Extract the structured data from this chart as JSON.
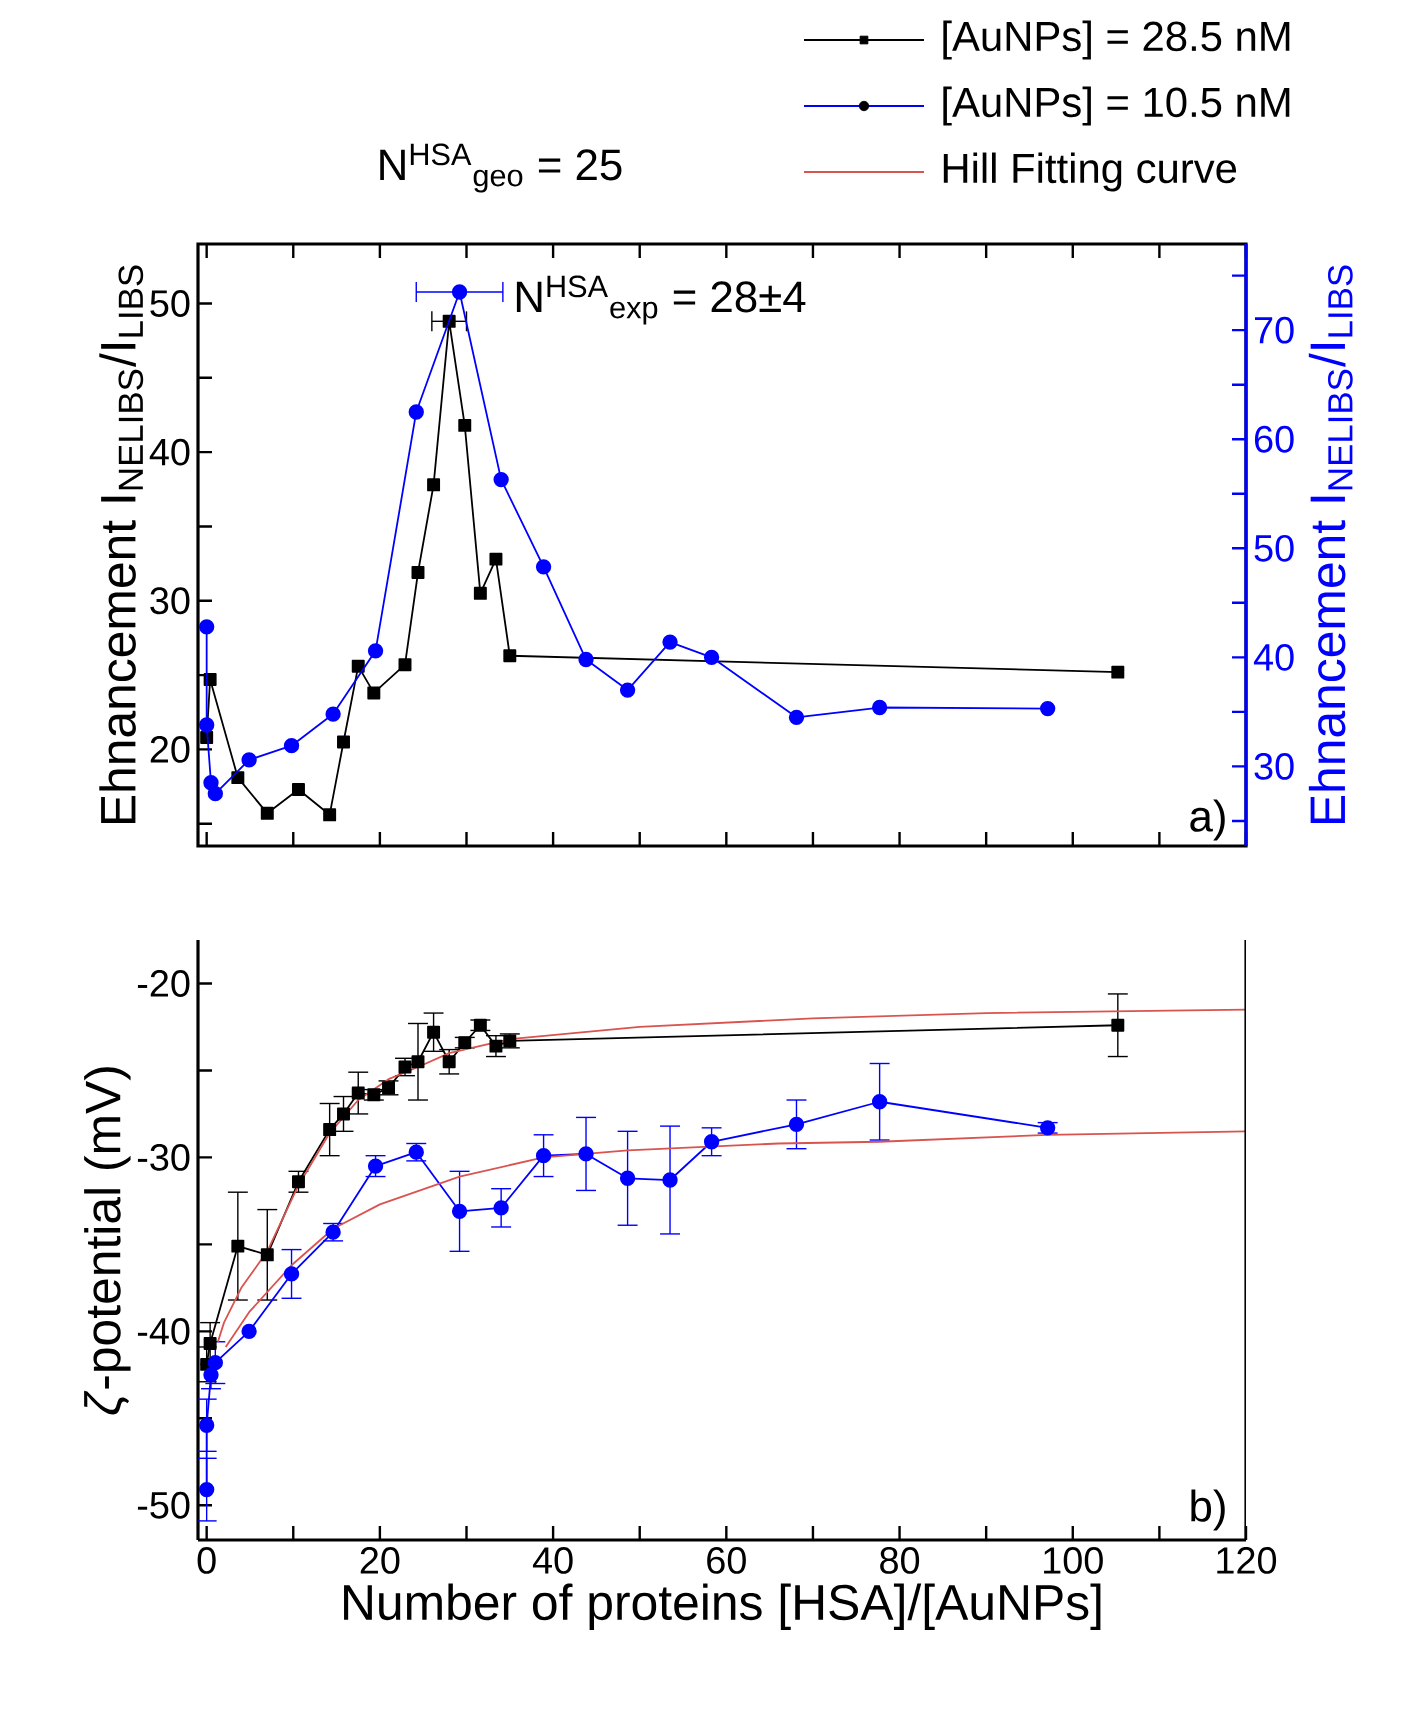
{
  "chart_data": [
    {
      "type": "line",
      "ylabel": "Ehnancement I$_{NELIBS}$/I$_{LIBS}$",
      "y2label": "Ehnancement I$_{NELIBS}$/I$_{LIBS}$",
      "legend": "top right",
      "tick_labels": "y",
      "annotations": [
        "N$^{HSA}$$_{geo}$ = 25",
        "N$^{HSA}$$_{exp}$ = 28±4",
        "a)"
      ],
      "xlim": [
        -1,
        120
      ],
      "xticks": [
        {
          "value": 0,
          "label": null
        },
        {
          "value": 10,
          "label": null
        },
        {
          "value": 20,
          "label": null
        },
        {
          "value": 30,
          "label": null
        },
        {
          "value": 40,
          "label": null
        },
        {
          "value": 50,
          "label": null
        },
        {
          "value": 60,
          "label": null
        },
        {
          "value": 70,
          "label": null
        },
        {
          "value": 80,
          "label": null
        },
        {
          "value": 90,
          "label": null
        },
        {
          "value": 100,
          "label": null
        },
        {
          "value": 110,
          "label": null
        },
        {
          "value": 120,
          "label": null
        }
      ],
      "ylim": [
        13.5,
        54
      ],
      "yticks": [
        {
          "value": 15,
          "label": null
        },
        20,
        {
          "value": 25,
          "label": null
        },
        30,
        {
          "value": 35,
          "label": null
        },
        40,
        {
          "value": 45,
          "label": null
        },
        50
      ],
      "y2lim": [
        22.7,
        77.9
      ],
      "y2ticks": [
        {
          "value": 25,
          "label": null
        },
        30,
        {
          "value": 35,
          "label": null
        },
        40,
        {
          "value": 45,
          "label": null
        },
        50,
        {
          "value": 55,
          "label": null
        },
        60,
        {
          "value": 65,
          "label": null
        },
        70,
        {
          "value": 75,
          "label": null
        }
      ],
      "series": [
        {
          "name": "[AuNPs] = 28.5 nM",
          "color": "#000000",
          "marker": "square",
          "axis": "y",
          "x": [
            0,
            0.4,
            3.6,
            7.0,
            10.6,
            14.2,
            15.8,
            17.5,
            19.3,
            22.9,
            24.4,
            26.2,
            28.0,
            29.8,
            31.6,
            33.4,
            35.0,
            105.2
          ],
          "values": [
            20.8,
            24.7,
            18.1,
            15.7,
            17.3,
            15.6,
            20.5,
            25.6,
            23.8,
            25.7,
            31.9,
            37.8,
            48.8,
            41.8,
            30.5,
            32.8,
            26.3,
            25.2
          ],
          "xerrors": [
            null,
            null,
            null,
            null,
            null,
            null,
            null,
            null,
            null,
            null,
            null,
            null,
            2,
            null,
            null,
            null,
            null,
            null
          ]
        },
        {
          "name": "[AuNPs] = 10.5 nM",
          "color": "#0000ff",
          "marker": "circle",
          "axis": "y2",
          "x": [
            0,
            0,
            0.5,
            1.0,
            4.9,
            9.8,
            14.6,
            19.5,
            24.2,
            29.2,
            34.0,
            38.9,
            43.8,
            48.6,
            53.5,
            58.3,
            68.1,
            77.7,
            97.1
          ],
          "values": [
            42.8,
            33.8,
            28.5,
            27.5,
            30.6,
            31.9,
            34.8,
            40.6,
            62.5,
            73.5,
            56.3,
            48.3,
            39.8,
            37.0,
            41.4,
            40.0,
            34.5,
            35.4,
            35.3
          ],
          "xerrors": [
            null,
            null,
            null,
            null,
            null,
            null,
            null,
            null,
            null,
            5,
            null,
            null,
            null,
            null,
            null,
            null,
            null,
            null,
            null
          ]
        }
      ]
    },
    {
      "type": "line",
      "xlabel": "Number of proteins [HSA]/[AuNPs]",
      "ylabel": "*ζ*-potential (mV)",
      "annotations": [
        "b)"
      ],
      "xlim": [
        -1,
        120
      ],
      "xticks": [
        0,
        {
          "value": 10,
          "label": null
        },
        20,
        {
          "value": 30,
          "label": null
        },
        40,
        {
          "value": 50,
          "label": null
        },
        60,
        {
          "value": 70,
          "label": null
        },
        80,
        {
          "value": 90,
          "label": null
        },
        100,
        {
          "value": 110,
          "label": null
        },
        120
      ],
      "ylim": [
        -52,
        -17.5
      ],
      "yticks": [
        -50,
        {
          "value": -45,
          "label": null
        },
        -40,
        {
          "value": -35,
          "label": null
        },
        -30,
        {
          "value": -25,
          "label": null
        },
        -20
      ],
      "series": [
        {
          "color": "#000000",
          "marker": "square",
          "x": [
            0,
            0.4,
            3.6,
            7.0,
            10.6,
            14.2,
            15.8,
            17.5,
            19.3,
            21.0,
            22.9,
            24.4,
            26.2,
            28.0,
            29.8,
            31.6,
            33.4,
            35.0,
            105.2
          ],
          "values": [
            -41.9,
            -40.7,
            -35.1,
            -35.6,
            -31.4,
            -28.4,
            -27.5,
            -26.3,
            -26.4,
            -26.0,
            -24.8,
            -24.5,
            -22.8,
            -24.5,
            -23.4,
            -22.4,
            -23.6,
            -23.3,
            -22.4
          ],
          "errors": [
            1.0,
            1.2,
            3.1,
            2.6,
            0.6,
            1.5,
            1.0,
            1.2,
            0.3,
            0.4,
            0.5,
            2.2,
            1.1,
            0.7,
            0.3,
            0.3,
            0.6,
            0.4,
            1.8
          ]
        },
        {
          "color": "#0000ff",
          "marker": "circle",
          "x": [
            0,
            0,
            0.5,
            1.0,
            4.9,
            9.8,
            14.6,
            19.5,
            24.2,
            29.2,
            34.0,
            38.9,
            43.8,
            48.6,
            53.5,
            58.3,
            68.1,
            77.7,
            97.1
          ],
          "values": [
            -49.1,
            -45.4,
            -42.5,
            -41.8,
            -40.0,
            -36.7,
            -34.3,
            -30.5,
            -29.7,
            -33.1,
            -32.9,
            -29.9,
            -29.8,
            -31.2,
            -31.3,
            -29.1,
            -28.1,
            -26.8,
            -28.3
          ],
          "errors": [
            1.8,
            1.5,
            0.8,
            1.2,
            null,
            1.4,
            0.5,
            0.6,
            0.5,
            2.3,
            1.1,
            1.2,
            2.1,
            2.7,
            3.1,
            0.8,
            1.4,
            2.2,
            0.3
          ]
        },
        {
          "name": "Hill Fitting curve",
          "type": "line",
          "color": "#d9534f",
          "marker": "none",
          "x": [
            1.3,
            2,
            4,
            7,
            10.6,
            14.2,
            17.5,
            21,
            24.4,
            28,
            35,
            50,
            70,
            90,
            120
          ],
          "values": [
            -40.6,
            -39.5,
            -37.5,
            -35.4,
            -31.6,
            -28.6,
            -26.7,
            -25.5,
            -24.8,
            -24.0,
            -23.2,
            -22.5,
            -22.0,
            -21.7,
            -21.5
          ]
        },
        {
          "type": "line",
          "color": "#d9534f",
          "marker": "none",
          "x": [
            2.2,
            4.9,
            9.8,
            14.6,
            20,
            29.2,
            38.9,
            48.6,
            66,
            77.7,
            97.1,
            120
          ],
          "values": [
            -40.9,
            -38.9,
            -36.2,
            -34.1,
            -32.7,
            -31.1,
            -30.0,
            -29.6,
            -29.2,
            -29.1,
            -28.7,
            -28.5
          ]
        }
      ]
    }
  ]
}
